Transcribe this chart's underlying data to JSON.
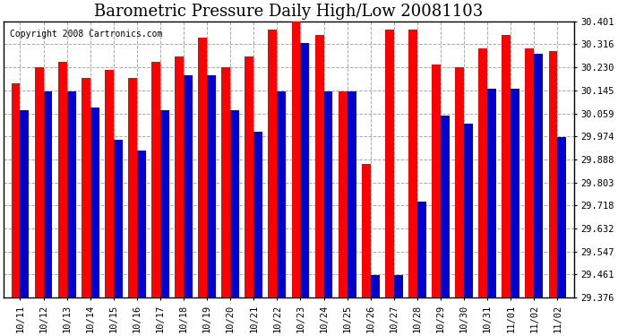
{
  "title": "Barometric Pressure Daily High/Low 20081103",
  "copyright": "Copyright 2008 Cartronics.com",
  "categories": [
    "10/11",
    "10/12",
    "10/13",
    "10/14",
    "10/15",
    "10/16",
    "10/17",
    "10/18",
    "10/19",
    "10/20",
    "10/21",
    "10/22",
    "10/23",
    "10/24",
    "10/25",
    "10/26",
    "10/27",
    "10/28",
    "10/29",
    "10/30",
    "10/31",
    "11/01",
    "11/02",
    "11/02"
  ],
  "highs": [
    30.17,
    30.23,
    30.25,
    30.19,
    30.22,
    30.19,
    30.25,
    30.27,
    30.34,
    30.23,
    30.27,
    30.37,
    30.4,
    30.35,
    30.14,
    29.87,
    30.37,
    30.37,
    30.24,
    30.23,
    30.3,
    30.35,
    30.3,
    30.29
  ],
  "lows": [
    30.07,
    30.14,
    30.14,
    30.08,
    29.96,
    29.92,
    30.07,
    30.2,
    30.2,
    30.07,
    29.99,
    30.14,
    30.32,
    30.14,
    30.14,
    29.46,
    29.46,
    29.73,
    30.05,
    30.02,
    30.15,
    30.15,
    30.28,
    29.97
  ],
  "bar_color_high": "#ff0000",
  "bar_color_low": "#0000cc",
  "background_color": "#ffffff",
  "plot_bg_color": "#ffffff",
  "ylim_min": 29.376,
  "ylim_max": 30.401,
  "yticks": [
    29.376,
    29.461,
    29.547,
    29.632,
    29.718,
    29.803,
    29.888,
    29.974,
    30.059,
    30.145,
    30.23,
    30.316,
    30.401
  ],
  "grid_color": "#aaaaaa",
  "title_fontsize": 13,
  "tick_fontsize": 7.5,
  "copyright_fontsize": 7,
  "bar_width": 0.38
}
